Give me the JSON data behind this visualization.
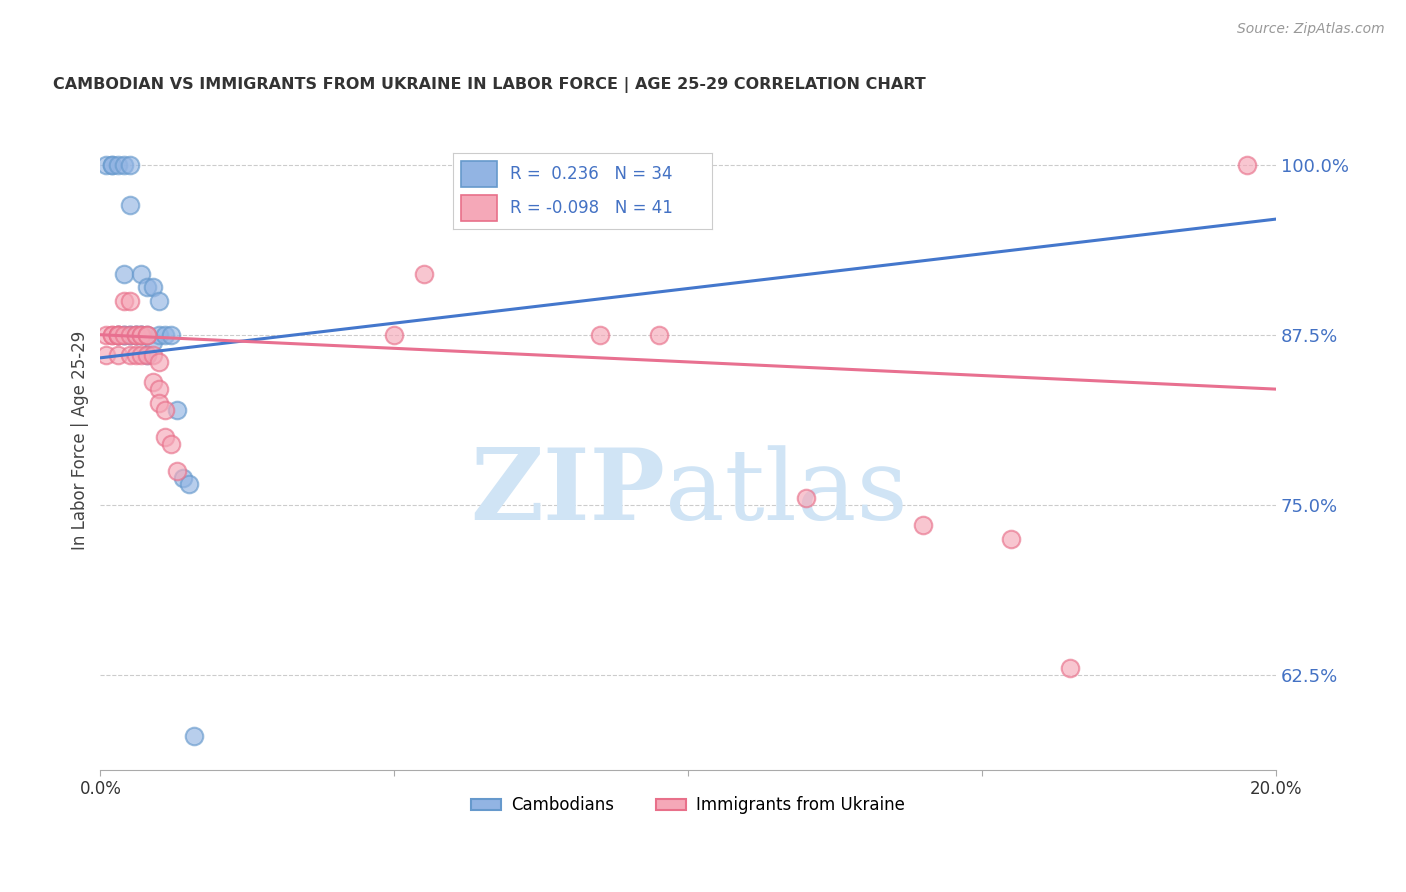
{
  "title": "CAMBODIAN VS IMMIGRANTS FROM UKRAINE IN LABOR FORCE | AGE 25-29 CORRELATION CHART",
  "source": "Source: ZipAtlas.com",
  "ylabel": "In Labor Force | Age 25-29",
  "xlim": [
    0.0,
    0.2
  ],
  "ylim": [
    0.555,
    1.04
  ],
  "ytick_positions": [
    0.625,
    0.75,
    0.875,
    1.0
  ],
  "ytick_labels": [
    "62.5%",
    "75.0%",
    "87.5%",
    "100.0%"
  ],
  "xtick_positions": [
    0.0,
    0.2
  ],
  "xtick_labels": [
    "0.0%",
    "20.0%"
  ],
  "blue_color": "#92B4E3",
  "pink_color": "#F5A8B8",
  "blue_edge": "#6699CC",
  "pink_edge": "#E8708A",
  "blue_line_color": "#4477CC",
  "pink_line_color": "#E87090",
  "right_axis_color": "#4472C4",
  "legend_line1": "R =  0.236   N = 34",
  "legend_line2": "R = -0.098   N = 41",
  "blue_x": [
    0.001,
    0.002,
    0.002,
    0.003,
    0.003,
    0.003,
    0.004,
    0.004,
    0.004,
    0.004,
    0.005,
    0.005,
    0.005,
    0.005,
    0.006,
    0.006,
    0.006,
    0.007,
    0.007,
    0.007,
    0.007,
    0.008,
    0.008,
    0.008,
    0.009,
    0.009,
    0.01,
    0.01,
    0.011,
    0.012,
    0.013,
    0.014,
    0.015,
    0.016
  ],
  "blue_y": [
    1.0,
    1.0,
    1.0,
    1.0,
    0.875,
    0.875,
    1.0,
    0.875,
    0.875,
    0.92,
    1.0,
    0.97,
    0.875,
    0.875,
    0.875,
    0.875,
    0.875,
    0.92,
    0.875,
    0.875,
    0.875,
    0.91,
    0.875,
    0.86,
    0.91,
    0.87,
    0.9,
    0.875,
    0.875,
    0.875,
    0.82,
    0.77,
    0.765,
    0.58
  ],
  "pink_x": [
    0.001,
    0.001,
    0.002,
    0.002,
    0.003,
    0.003,
    0.003,
    0.003,
    0.003,
    0.004,
    0.004,
    0.005,
    0.005,
    0.005,
    0.006,
    0.006,
    0.006,
    0.007,
    0.007,
    0.007,
    0.008,
    0.008,
    0.008,
    0.009,
    0.009,
    0.01,
    0.01,
    0.01,
    0.011,
    0.011,
    0.012,
    0.013,
    0.05,
    0.055,
    0.085,
    0.095,
    0.12,
    0.14,
    0.155,
    0.165,
    0.195
  ],
  "pink_y": [
    0.875,
    0.86,
    0.875,
    0.875,
    0.875,
    0.875,
    0.875,
    0.875,
    0.86,
    0.9,
    0.875,
    0.9,
    0.875,
    0.86,
    0.875,
    0.875,
    0.86,
    0.875,
    0.875,
    0.86,
    0.875,
    0.875,
    0.86,
    0.86,
    0.84,
    0.855,
    0.835,
    0.825,
    0.82,
    0.8,
    0.795,
    0.775,
    0.875,
    0.92,
    0.875,
    0.875,
    0.755,
    0.735,
    0.725,
    0.63,
    1.0
  ],
  "blue_trendline_x": [
    0.0,
    0.2
  ],
  "blue_trendline_y": [
    0.858,
    0.96
  ],
  "pink_trendline_x": [
    0.0,
    0.2
  ],
  "pink_trendline_y": [
    0.875,
    0.835
  ],
  "watermark_zip": "ZIP",
  "watermark_atlas": "atlas",
  "watermark_color": "#D0E4F5",
  "background_color": "#FFFFFF",
  "grid_color": "#CCCCCC"
}
